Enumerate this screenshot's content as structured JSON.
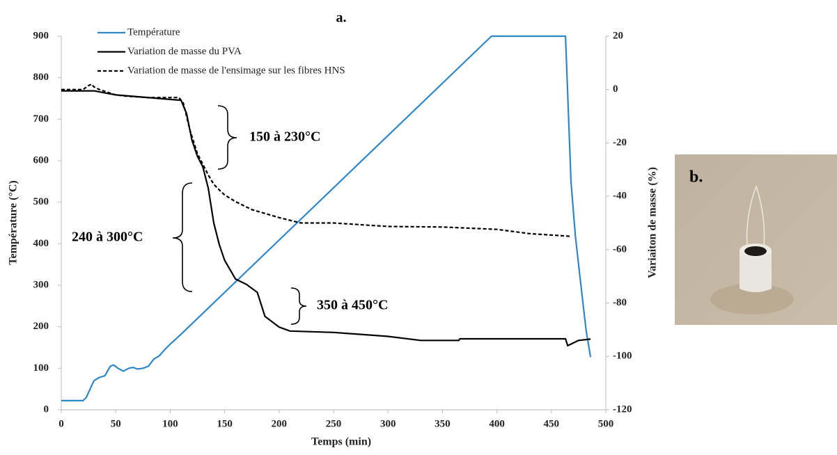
{
  "chart_data": {
    "type": "line",
    "title": "a.",
    "x_label": "Temps (min)",
    "y_label": "Température (°C)",
    "y2_label": "Variaiton de masse (%)",
    "xlim": [
      0,
      500
    ],
    "xticks": [
      0,
      50,
      100,
      150,
      200,
      250,
      300,
      350,
      400,
      450,
      500
    ],
    "ylim": [
      0,
      900
    ],
    "yticks": [
      0,
      100,
      200,
      300,
      400,
      500,
      600,
      700,
      800,
      900
    ],
    "y2lim": [
      -120,
      20
    ],
    "y2ticks": [
      -120,
      -100,
      -80,
      -60,
      -40,
      -20,
      0,
      20
    ],
    "legend": "top-left",
    "grid": false,
    "series": [
      {
        "name": "Température",
        "color": "#2e86c8",
        "linestyle": "solid",
        "axis": "y",
        "x": [
          0,
          20,
          23,
          30,
          35,
          40,
          45,
          48,
          52,
          57,
          62,
          66,
          70,
          75,
          80,
          85,
          90,
          95,
          100,
          110,
          395,
          463,
          468,
          472,
          478,
          482,
          486
        ],
        "values": [
          22,
          22,
          30,
          70,
          78,
          82,
          105,
          108,
          100,
          93,
          100,
          102,
          98,
          100,
          105,
          122,
          130,
          145,
          158,
          182,
          900,
          900,
          550,
          420,
          280,
          190,
          127
        ]
      },
      {
        "name": "Variation de masse du PVA",
        "color": "#000000",
        "linestyle": "solid",
        "axis": "y2",
        "x": [
          0,
          30,
          50,
          100,
          110,
          115,
          120,
          125,
          130,
          135,
          140,
          145,
          150,
          160,
          170,
          180,
          187,
          200,
          210,
          250,
          300,
          330,
          365,
          366,
          463,
          465,
          475,
          486
        ],
        "values": [
          -0.5,
          -0.5,
          -2,
          -3.7,
          -4,
          -9,
          -19,
          -25,
          -29,
          -37,
          -50,
          -58,
          -64,
          -71,
          -73,
          -76,
          -85,
          -89,
          -90.5,
          -91,
          -92.5,
          -94,
          -94,
          -93.4,
          -93.4,
          -96,
          -94,
          -93.5
        ]
      },
      {
        "name": "Variation de masse de l'ensimage sur les fibres HNS",
        "color": "#000000",
        "linestyle": "dashed",
        "axis": "y2",
        "x": [
          0,
          20,
          25,
          28,
          30,
          35,
          50,
          60,
          80,
          108,
          112,
          118,
          125,
          130,
          135,
          140,
          145,
          150,
          160,
          175,
          200,
          220,
          250,
          300,
          350,
          400,
          430,
          468
        ],
        "values": [
          0,
          0,
          1.5,
          2,
          1,
          0,
          -2,
          -2.5,
          -3,
          -3,
          -5,
          -15,
          -24,
          -28,
          -32,
          -35.5,
          -37.6,
          -39.5,
          -42,
          -45,
          -48,
          -50,
          -50,
          -51.3,
          -51.5,
          -52.4,
          -54,
          -55
        ]
      }
    ],
    "annotations": [
      "150 à 230°C",
      "240 à 300°C",
      "350 à 450°C",
      "b."
    ]
  }
}
